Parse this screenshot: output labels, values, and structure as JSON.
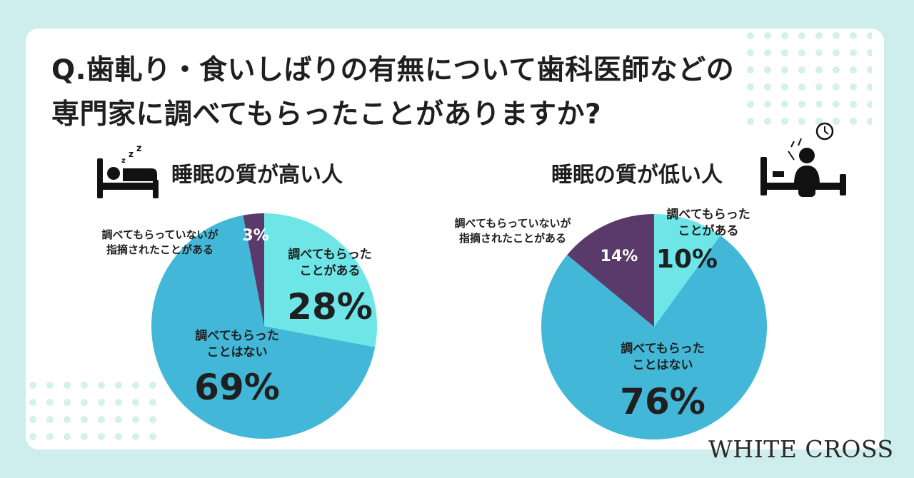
{
  "title": {
    "line1": "Q.歯軋り・食いしばりの有無について歯科医師などの",
    "line2": "専門家に調べてもらったことがありますか?"
  },
  "brand": "WHITE CROSS",
  "colors": {
    "background": "#cdeeed",
    "card": "#ffffff",
    "slice_had_checked": "#6ee6e8",
    "slice_not_checked": "#43b7d8",
    "slice_pointed_out": "#5a3a6a",
    "dots": "#d4f0ef",
    "text": "#1f1f1f"
  },
  "icons": {
    "left": "sleeping-person-in-bed-icon",
    "right": "sleepless-person-in-bed-icon"
  },
  "chart_data": [
    {
      "type": "pie",
      "title": "睡眠の質が高い人",
      "slices": [
        {
          "label_lines": [
            "調べてもらった",
            "ことがある"
          ],
          "value": 28,
          "value_label": "28%",
          "color": "#6ee6e8"
        },
        {
          "label_lines": [
            "調べてもらった",
            "ことはない"
          ],
          "value": 69,
          "value_label": "69%",
          "color": "#43b7d8"
        },
        {
          "label_lines": [
            "調べてもらっていないが",
            "指摘されたことがある"
          ],
          "value": 3,
          "value_label": "3%",
          "color": "#5a3a6a"
        }
      ]
    },
    {
      "type": "pie",
      "title": "睡眠の質が低い人",
      "slices": [
        {
          "label_lines": [
            "調べてもらった",
            "ことがある"
          ],
          "value": 10,
          "value_label": "10%",
          "color": "#6ee6e8"
        },
        {
          "label_lines": [
            "調べてもらった",
            "ことはない"
          ],
          "value": 76,
          "value_label": "76%",
          "color": "#43b7d8"
        },
        {
          "label_lines": [
            "調べてもらっていないが",
            "指摘されたことがある"
          ],
          "value": 14,
          "value_label": "14%",
          "color": "#5a3a6a"
        }
      ]
    }
  ]
}
